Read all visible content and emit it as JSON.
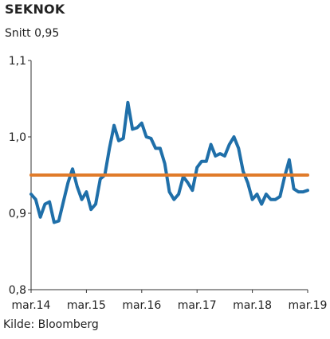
{
  "chart_data": {
    "type": "line",
    "title": "SEKNOK",
    "subtitle": "Snitt 0,95",
    "source": "Kilde: Bloomberg",
    "ylim": [
      0.8,
      1.1
    ],
    "yticks": [
      {
        "v": 1.1,
        "label": "1,1"
      },
      {
        "v": 1.0,
        "label": "1,0"
      },
      {
        "v": 0.9,
        "label": "0,9"
      },
      {
        "v": 0.8,
        "label": "0,8"
      }
    ],
    "xlim": [
      "2014-03",
      "2019-03"
    ],
    "xticks": [
      {
        "t": "2014-03",
        "label": "mar.14"
      },
      {
        "t": "2015-03",
        "label": "mar.15"
      },
      {
        "t": "2016-03",
        "label": "mar.16"
      },
      {
        "t": "2017-03",
        "label": "mar.17"
      },
      {
        "t": "2018-03",
        "label": "mar.18"
      },
      {
        "t": "2019-03",
        "label": "mar.19"
      }
    ],
    "grid": false,
    "series": [
      {
        "color": "#1f6fa9",
        "points": [
          [
            "2014-03",
            0.925
          ],
          [
            "2014-04",
            0.918
          ],
          [
            "2014-05",
            0.895
          ],
          [
            "2014-06",
            0.912
          ],
          [
            "2014-07",
            0.915
          ],
          [
            "2014-08",
            0.888
          ],
          [
            "2014-09",
            0.89
          ],
          [
            "2014-10",
            0.915
          ],
          [
            "2014-11",
            0.94
          ],
          [
            "2014-12",
            0.958
          ],
          [
            "2015-01",
            0.935
          ],
          [
            "2015-02",
            0.918
          ],
          [
            "2015-03",
            0.928
          ],
          [
            "2015-04",
            0.905
          ],
          [
            "2015-05",
            0.912
          ],
          [
            "2015-06",
            0.945
          ],
          [
            "2015-07",
            0.95
          ],
          [
            "2015-08",
            0.985
          ],
          [
            "2015-09",
            1.015
          ],
          [
            "2015-10",
            0.995
          ],
          [
            "2015-11",
            0.998
          ],
          [
            "2015-12",
            1.045
          ],
          [
            "2016-01",
            1.01
          ],
          [
            "2016-02",
            1.012
          ],
          [
            "2016-03",
            1.018
          ],
          [
            "2016-04",
            1.0
          ],
          [
            "2016-05",
            0.998
          ],
          [
            "2016-06",
            0.985
          ],
          [
            "2016-07",
            0.985
          ],
          [
            "2016-08",
            0.965
          ],
          [
            "2016-09",
            0.928
          ],
          [
            "2016-10",
            0.918
          ],
          [
            "2016-11",
            0.925
          ],
          [
            "2016-12",
            0.948
          ],
          [
            "2017-01",
            0.94
          ],
          [
            "2017-02",
            0.93
          ],
          [
            "2017-03",
            0.96
          ],
          [
            "2017-04",
            0.968
          ],
          [
            "2017-05",
            0.968
          ],
          [
            "2017-06",
            0.99
          ],
          [
            "2017-07",
            0.975
          ],
          [
            "2017-08",
            0.978
          ],
          [
            "2017-09",
            0.975
          ],
          [
            "2017-10",
            0.99
          ],
          [
            "2017-11",
            1.0
          ],
          [
            "2017-12",
            0.985
          ],
          [
            "2018-01",
            0.955
          ],
          [
            "2018-02",
            0.94
          ],
          [
            "2018-03",
            0.918
          ],
          [
            "2018-04",
            0.925
          ],
          [
            "2018-05",
            0.912
          ],
          [
            "2018-06",
            0.925
          ],
          [
            "2018-07",
            0.918
          ],
          [
            "2018-08",
            0.918
          ],
          [
            "2018-09",
            0.922
          ],
          [
            "2018-10",
            0.948
          ],
          [
            "2018-11",
            0.97
          ],
          [
            "2018-12",
            0.932
          ],
          [
            "2019-01",
            0.928
          ],
          [
            "2019-02",
            0.928
          ],
          [
            "2019-03",
            0.93
          ]
        ]
      },
      {
        "color": "#e07b2a",
        "points": [
          [
            "2014-03",
            0.95
          ],
          [
            "2019-03",
            0.95
          ]
        ]
      }
    ]
  }
}
